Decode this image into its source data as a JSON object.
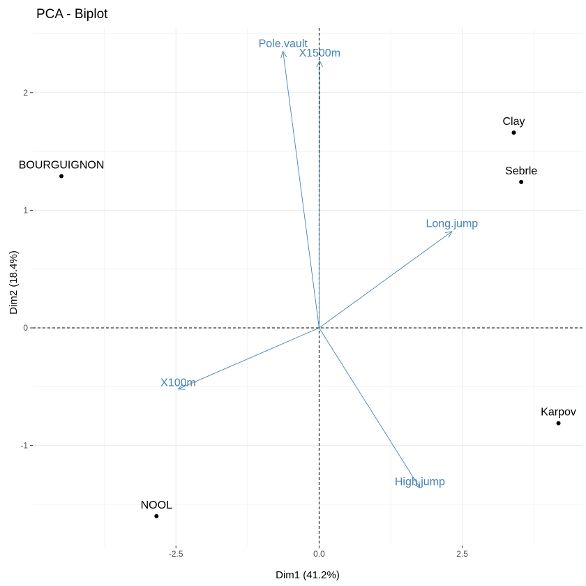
{
  "chart_data": {
    "type": "scatter",
    "title": "PCA - Biplot",
    "xlabel": "Dim1 (41.2%)",
    "ylabel": "Dim2 (18.4%)",
    "xlim": [
      -5.0,
      4.6
    ],
    "ylim": [
      -1.85,
      2.55
    ],
    "xticks": [
      -2.5,
      0.0,
      2.5
    ],
    "xtick_labels": [
      "-2.5",
      "0.0",
      "2.5"
    ],
    "yticks": [
      -1,
      0,
      1,
      2
    ],
    "ytick_labels": [
      "-1",
      "0",
      "1",
      "2"
    ],
    "grid": true,
    "reference_lines": {
      "x": 0,
      "y": 0,
      "style": "dashed"
    },
    "individuals": [
      {
        "label": "BOURGUIGNON",
        "x": -4.5,
        "y": 1.29
      },
      {
        "label": "Clay",
        "x": 3.4,
        "y": 1.66
      },
      {
        "label": "Sebrle",
        "x": 3.53,
        "y": 1.24
      },
      {
        "label": "Karpov",
        "x": 4.18,
        "y": -0.81
      },
      {
        "label": "NOOL",
        "x": -2.84,
        "y": -1.6
      }
    ],
    "variables": [
      {
        "label": "Pole.vault",
        "x": -0.63,
        "y": 2.35
      },
      {
        "label": "X1500m",
        "x": 0.01,
        "y": 2.27
      },
      {
        "label": "Long.jump",
        "x": 2.32,
        "y": 0.82
      },
      {
        "label": "X100m",
        "x": -2.46,
        "y": -0.52
      },
      {
        "label": "High.jump",
        "x": 1.76,
        "y": -1.36
      }
    ],
    "colors": {
      "variable_arrow": "#4682b4",
      "variable_label": "#4682b4",
      "point": "#000000",
      "grid": "#ebebeb",
      "reference_line": "#000000"
    }
  }
}
